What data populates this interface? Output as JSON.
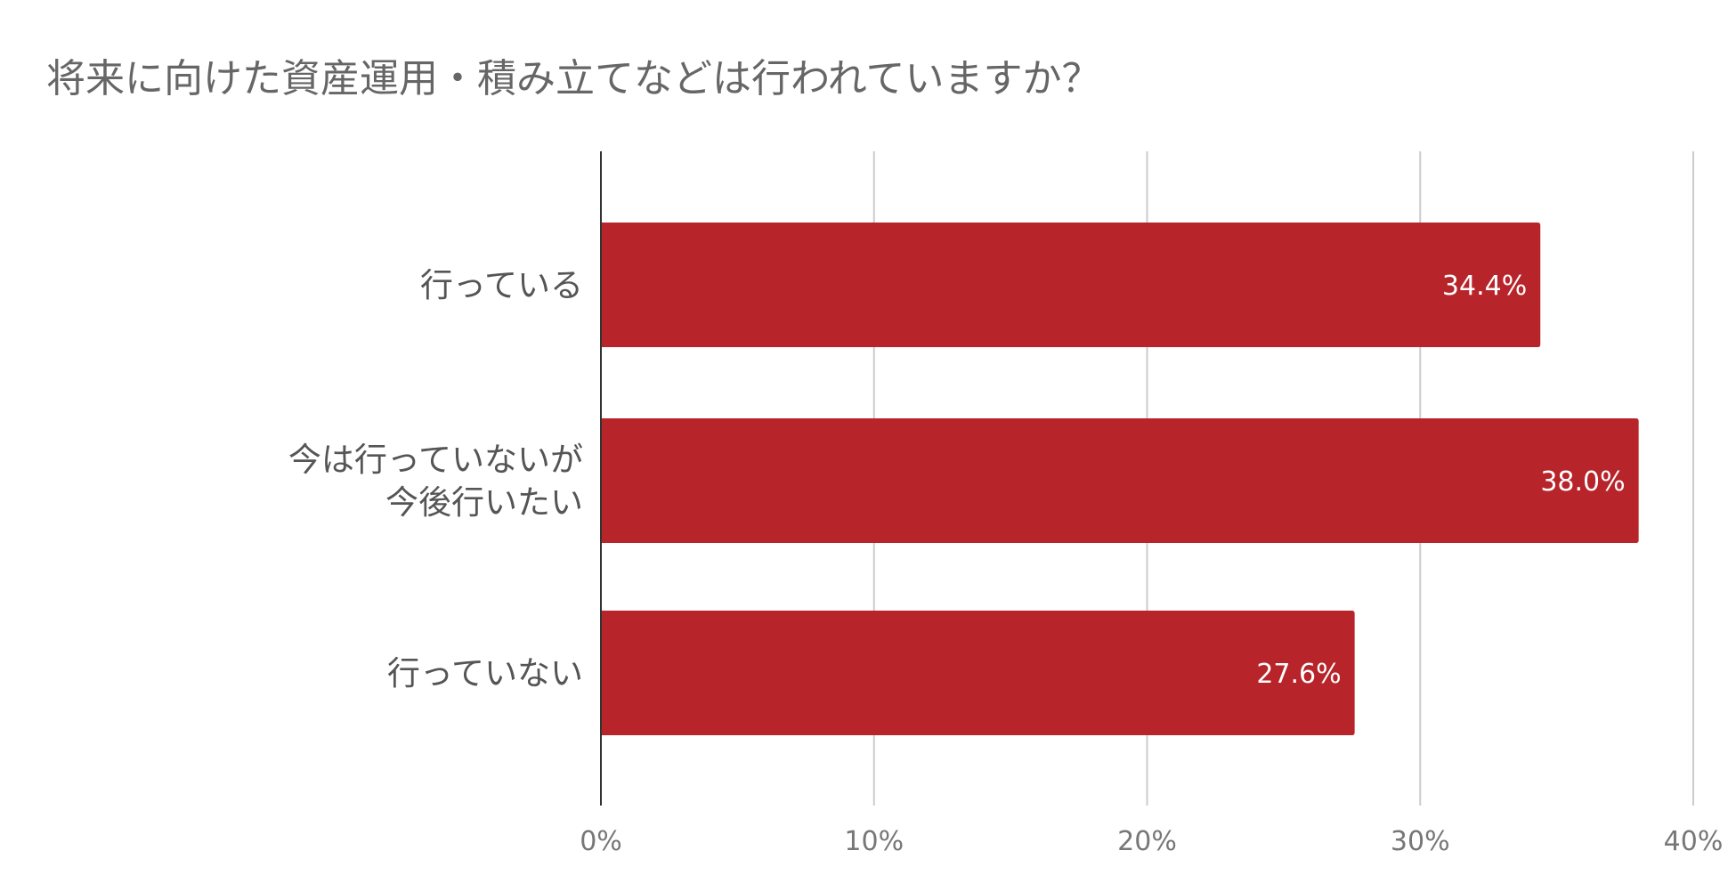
{
  "chart_data": {
    "type": "bar",
    "orientation": "horizontal",
    "title": "将来に向けた資産運用・積み立てなどは行われていますか？",
    "categories": [
      [
        "行っている"
      ],
      [
        "今は行っていないが",
        "今後行いたい"
      ],
      [
        "行っていない"
      ]
    ],
    "values": [
      34.4,
      38.0,
      27.6
    ],
    "data_labels": [
      "34.4%",
      "38.0%",
      "27.6%"
    ],
    "xlim": [
      0,
      40
    ],
    "ticks": [
      0,
      10,
      20,
      30,
      40
    ],
    "tick_labels": [
      "0%",
      "10%",
      "20%",
      "30%",
      "40%"
    ],
    "bar_color": "#b7242a",
    "grid": true,
    "legend": "none"
  }
}
